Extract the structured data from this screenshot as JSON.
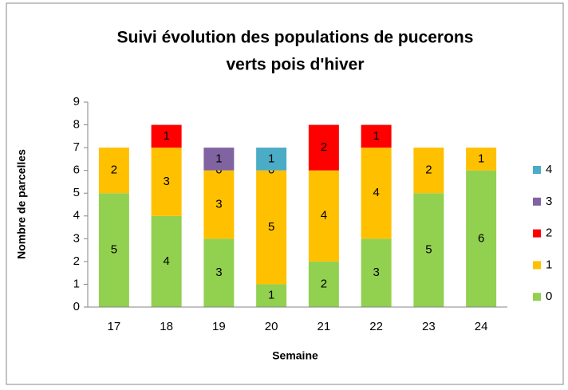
{
  "chart_data": {
    "type": "stacked_bar",
    "title": [
      "Suivi évolution des populations de pucerons",
      "verts pois d'hiver"
    ],
    "x_label": "Semaine",
    "y_label": "Nombre de parcelles",
    "categories": [
      "17",
      "18",
      "19",
      "20",
      "21",
      "22",
      "23",
      "24"
    ],
    "series": [
      {
        "name": "0",
        "color": "#92d050",
        "values": [
          5,
          4,
          3,
          1,
          2,
          3,
          5,
          6
        ]
      },
      {
        "name": "1",
        "color": "#ffc000",
        "values": [
          2,
          3,
          3,
          5,
          4,
          4,
          2,
          1
        ]
      },
      {
        "name": "2",
        "color": "#ff0000",
        "values": [
          null,
          1,
          0,
          0,
          2,
          1,
          null,
          null
        ]
      },
      {
        "name": "3",
        "color": "#8064a2",
        "values": [
          null,
          null,
          1,
          null,
          null,
          null,
          null,
          null
        ]
      },
      {
        "name": "4",
        "color": "#4bacc6",
        "values": [
          null,
          null,
          null,
          1,
          null,
          null,
          null,
          null
        ]
      }
    ],
    "ylim": [
      0,
      9
    ],
    "yticks": [
      0,
      1,
      2,
      3,
      4,
      5,
      6,
      7,
      8,
      9
    ],
    "grid": false,
    "legend": "right"
  }
}
